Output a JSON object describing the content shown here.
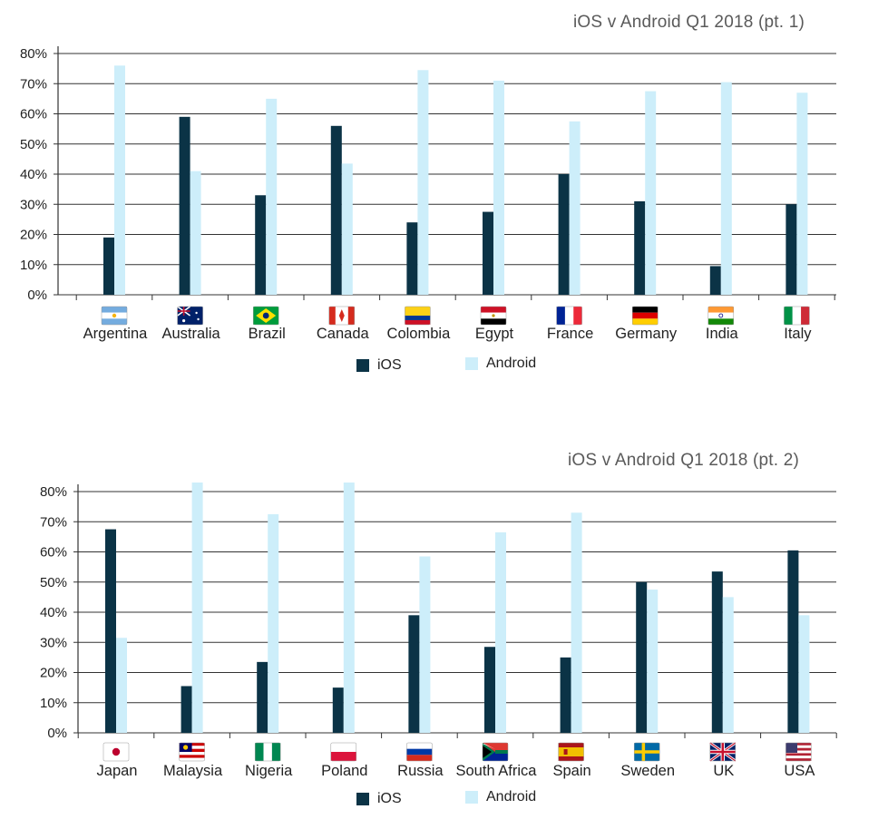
{
  "colors": {
    "ios": "#0b3346",
    "android": "#cdeefa",
    "grid": "#333333",
    "title": "#5a5a5a"
  },
  "chart_data": [
    {
      "type": "bar",
      "title": "iOS v Android Q1 2018  (pt. 1)",
      "categories": [
        "Argentina",
        "Australia",
        "Brazil",
        "Canada",
        "Colombia",
        "Egypt",
        "France",
        "Germany",
        "India",
        "Italy"
      ],
      "flags": [
        "argentina",
        "australia",
        "brazil",
        "canada",
        "colombia",
        "egypt",
        "france",
        "germany",
        "india",
        "italy"
      ],
      "series": [
        {
          "name": "iOS",
          "values": [
            19,
            59,
            33,
            56,
            24,
            27.5,
            40,
            31,
            9.5,
            30
          ]
        },
        {
          "name": "Android",
          "values": [
            76,
            41,
            65,
            43.5,
            74.5,
            71,
            57.5,
            67.5,
            70.5,
            67
          ]
        }
      ],
      "ylim": [
        0,
        80
      ],
      "yticks": [
        "0%",
        "10%",
        "20%",
        "30%",
        "40%",
        "50%",
        "60%",
        "70%",
        "80%"
      ],
      "legend": [
        "iOS",
        "Android"
      ],
      "grid": true,
      "legend_position": "bottom"
    },
    {
      "type": "bar",
      "title": "iOS v Android Q1 2018 (pt. 2)",
      "categories": [
        "Japan",
        "Malaysia",
        "Nigeria",
        "Poland",
        "Russia",
        "South Africa",
        "Spain",
        "Sweden",
        "UK",
        "USA"
      ],
      "flags": [
        "japan",
        "malaysia",
        "nigeria",
        "poland",
        "russia",
        "south-africa",
        "spain",
        "sweden",
        "uk",
        "usa"
      ],
      "series": [
        {
          "name": "iOS",
          "values": [
            67.5,
            15.5,
            23.5,
            15,
            39,
            28.5,
            25,
            50,
            53.5,
            60.5
          ]
        },
        {
          "name": "Android",
          "values": [
            31.5,
            83,
            72.5,
            83,
            58.5,
            66.5,
            73,
            47.5,
            45,
            39
          ]
        }
      ],
      "ylim": [
        0,
        80
      ],
      "yticks": [
        "0%",
        "10%",
        "20%",
        "30%",
        "40%",
        "50%",
        "60%",
        "70%",
        "80%"
      ],
      "legend": [
        "iOS",
        "Android"
      ],
      "grid": true,
      "legend_position": "bottom"
    }
  ]
}
